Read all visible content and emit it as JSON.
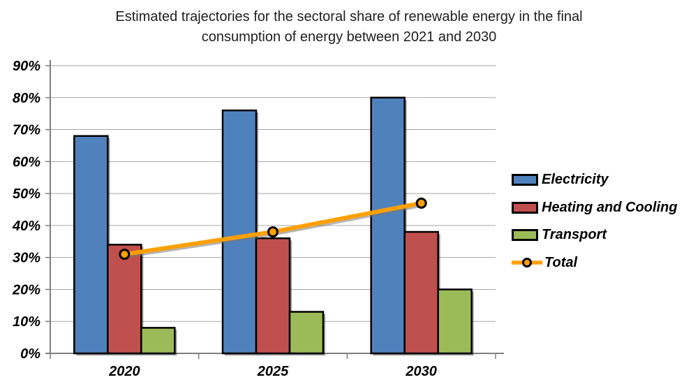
{
  "chart_data": {
    "type": "bar",
    "title": "Estimated trajectories for the sectoral share of renewable energy in the final consumption of energy between 2021 and 2030",
    "title_lines": [
      "Estimated trajectories for the sectoral share of renewable energy in the final",
      "consumption of energy between 2021 and 2030"
    ],
    "categories": [
      "2020",
      "2025",
      "2030"
    ],
    "series": [
      {
        "name": "Electricity",
        "type": "bar",
        "color": "#4F81BD",
        "values": [
          68,
          76,
          80
        ]
      },
      {
        "name": "Heating and Cooling",
        "type": "bar",
        "color": "#C0504D",
        "values": [
          34,
          36,
          38
        ]
      },
      {
        "name": "Transport",
        "type": "bar",
        "color": "#9BBB59",
        "values": [
          8,
          13,
          20
        ]
      },
      {
        "name": "Total",
        "type": "line",
        "color": "#FFA000",
        "marker": "circle",
        "values": [
          31,
          38,
          47
        ]
      }
    ],
    "ylim": [
      0,
      90
    ],
    "ytick_step": 10,
    "ytick_suffix": "%",
    "grid": true,
    "legend_position": "right",
    "colors": {
      "gridline": "#A6A6A6",
      "axis": "#7F7F7F",
      "bar_border": "#000000",
      "text": "#000000",
      "background": "#FFFFFF"
    }
  }
}
